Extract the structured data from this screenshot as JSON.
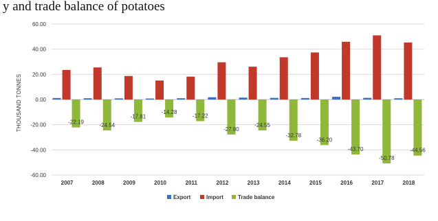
{
  "header": {
    "caption": "y and trade balance of potatoes"
  },
  "chart_data": {
    "type": "bar",
    "ylabel": "THOUSAND TONNES",
    "ylim": [
      -60,
      60
    ],
    "y_ticks": [
      "60.00",
      "40.00",
      "20.00",
      "0.00",
      "-20.00",
      "-40.00",
      "-60.00"
    ],
    "categories": [
      "2007",
      "2008",
      "2009",
      "2010",
      "2011",
      "2012",
      "2013",
      "2014",
      "2015",
      "2016",
      "2017",
      "2018"
    ],
    "series": [
      {
        "name": "Export",
        "color": "#3b6fc0",
        "values": [
          1.2,
          1.0,
          0.9,
          0.8,
          1.0,
          1.8,
          1.5,
          1.3,
          1.2,
          2.2,
          1.3,
          1.0
        ]
      },
      {
        "name": "Import",
        "color": "#c0392b",
        "values": [
          23.5,
          25.5,
          18.7,
          15.1,
          18.2,
          29.6,
          26.1,
          33.6,
          37.4,
          45.9,
          51.0,
          45.3
        ]
      },
      {
        "name": "Trade balance",
        "color": "#8fb83a",
        "values": [
          -22.19,
          -24.54,
          -17.81,
          -14.28,
          -17.22,
          -27.8,
          -24.55,
          -32.78,
          -36.2,
          -43.7,
          -50.78,
          -44.56
        ]
      }
    ],
    "data_labels": [
      "-22.19",
      "-24.54",
      "-17.81",
      "-14.28",
      "-17.22",
      "-27.80",
      "-24.55",
      "-32.78",
      "-36.20",
      "-43.70",
      "-50.78",
      "-44.56"
    ],
    "grid": true,
    "legend_position": "bottom"
  }
}
